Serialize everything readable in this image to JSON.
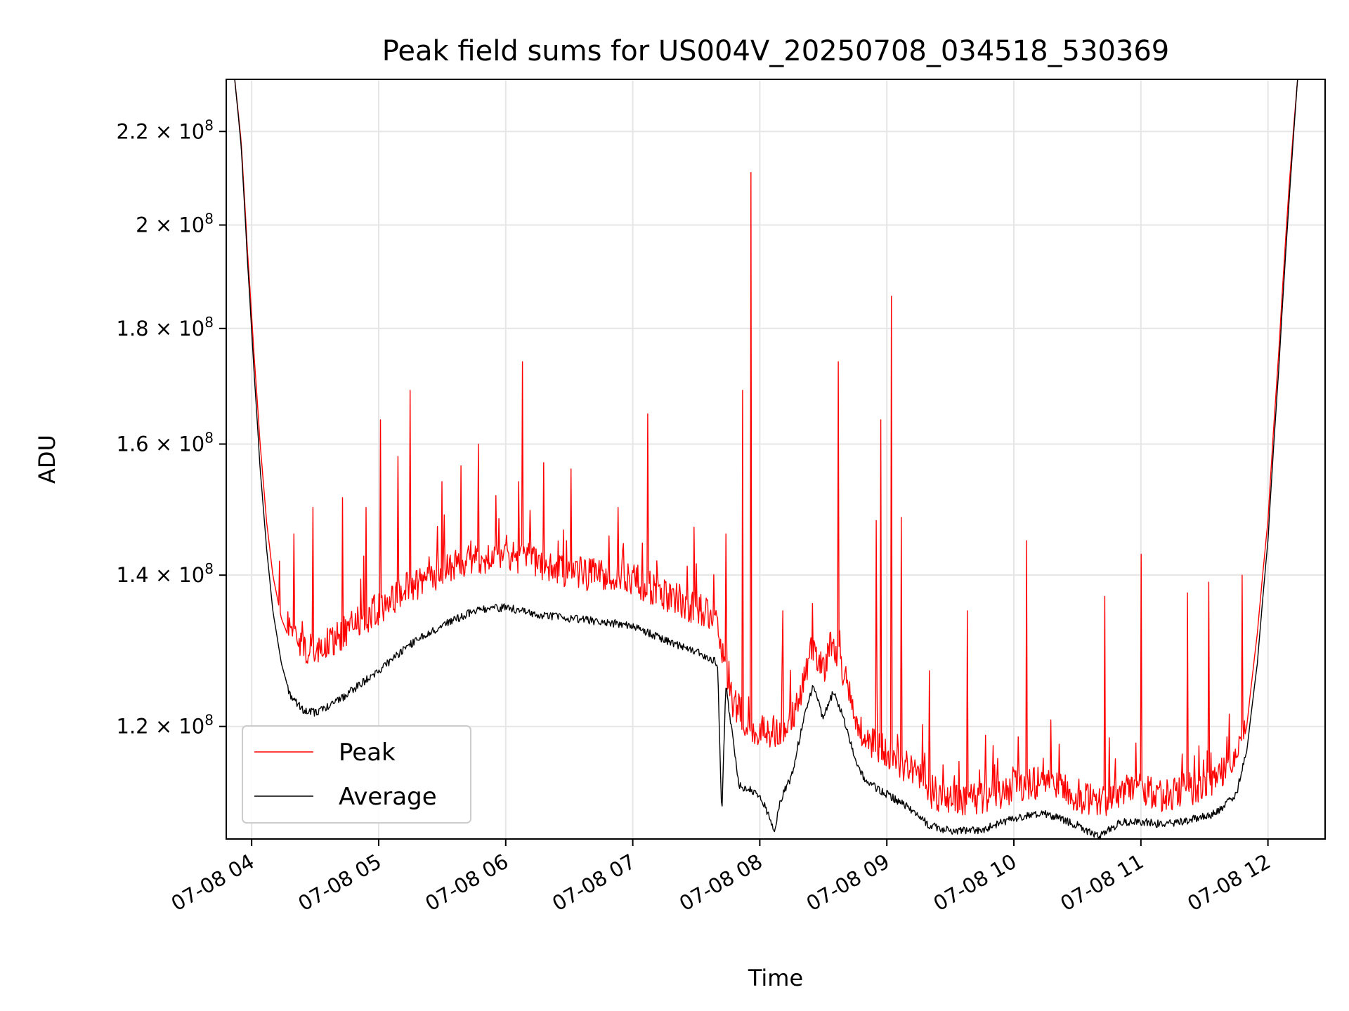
{
  "chart_data": {
    "type": "line",
    "title": "Peak field sums for US004V_20250708_034518_530369",
    "xlabel": "Time",
    "ylabel": "ADU",
    "y_scale": "log",
    "ylim": [
      107000000,
      232000000
    ],
    "xlim": [
      "2025-07-08 03:48",
      "2025-07-08 12:27"
    ],
    "x_ticks": [
      {
        "value": "2025-07-08 04:00",
        "label": "07-08 04"
      },
      {
        "value": "2025-07-08 05:00",
        "label": "07-08 05"
      },
      {
        "value": "2025-07-08 06:00",
        "label": "07-08 06"
      },
      {
        "value": "2025-07-08 07:00",
        "label": "07-08 07"
      },
      {
        "value": "2025-07-08 08:00",
        "label": "07-08 08"
      },
      {
        "value": "2025-07-08 09:00",
        "label": "07-08 09"
      },
      {
        "value": "2025-07-08 10:00",
        "label": "07-08 10"
      },
      {
        "value": "2025-07-08 11:00",
        "label": "07-08 11"
      },
      {
        "value": "2025-07-08 12:00",
        "label": "07-08 12"
      }
    ],
    "y_ticks": [
      {
        "value": 120000000,
        "mantissa": "1.2",
        "exponent": "8"
      },
      {
        "value": 140000000,
        "mantissa": "1.4",
        "exponent": "8"
      },
      {
        "value": 160000000,
        "mantissa": "1.6",
        "exponent": "8"
      },
      {
        "value": 180000000,
        "mantissa": "1.8",
        "exponent": "8"
      },
      {
        "value": 200000000,
        "mantissa": "2",
        "exponent": "8"
      },
      {
        "value": 220000000,
        "mantissa": "2.2",
        "exponent": "8"
      }
    ],
    "grid": true,
    "legend_position": "lower-left",
    "series": [
      {
        "name": "Peak",
        "color": "#ff0000",
        "points": [
          [
            "2025-07-08 03:52",
            232000000
          ],
          [
            "2025-07-08 03:55",
            218000000
          ],
          [
            "2025-07-08 03:58",
            195000000
          ],
          [
            "2025-07-08 04:01",
            176000000
          ],
          [
            "2025-07-08 04:04",
            160000000
          ],
          [
            "2025-07-08 04:07",
            148000000
          ],
          [
            "2025-07-08 04:10",
            140000000
          ],
          [
            "2025-07-08 04:14",
            134000000
          ],
          [
            "2025-07-08 04:18",
            131000000
          ],
          [
            "2025-07-08 04:24",
            128000000
          ],
          [
            "2025-07-08 04:30",
            127500000
          ],
          [
            "2025-07-08 04:40",
            129000000
          ],
          [
            "2025-07-08 04:50",
            131000000
          ],
          [
            "2025-07-08 05:00",
            133000000
          ],
          [
            "2025-07-08 05:15",
            136000000
          ],
          [
            "2025-07-08 05:30",
            138000000
          ],
          [
            "2025-07-08 05:45",
            140000000
          ],
          [
            "2025-07-08 06:00",
            140500000
          ],
          [
            "2025-07-08 06:15",
            139500000
          ],
          [
            "2025-07-08 06:30",
            138000000
          ],
          [
            "2025-07-08 06:45",
            137500000
          ],
          [
            "2025-07-08 07:00",
            137000000
          ],
          [
            "2025-07-08 07:15",
            135000000
          ],
          [
            "2025-07-08 07:30",
            133000000
          ],
          [
            "2025-07-08 07:40",
            132000000
          ],
          [
            "2025-07-08 07:45",
            122000000
          ],
          [
            "2025-07-08 07:55",
            118000000
          ],
          [
            "2025-07-08 08:05",
            117000000
          ],
          [
            "2025-07-08 08:15",
            118500000
          ],
          [
            "2025-07-08 08:20",
            123000000
          ],
          [
            "2025-07-08 08:25",
            128000000
          ],
          [
            "2025-07-08 08:30",
            125000000
          ],
          [
            "2025-07-08 08:35",
            128000000
          ],
          [
            "2025-07-08 08:40",
            124000000
          ],
          [
            "2025-07-08 08:45",
            119000000
          ],
          [
            "2025-07-08 08:50",
            116500000
          ],
          [
            "2025-07-08 09:00",
            115000000
          ],
          [
            "2025-07-08 09:10",
            113000000
          ],
          [
            "2025-07-08 09:20",
            110500000
          ],
          [
            "2025-07-08 09:30",
            109500000
          ],
          [
            "2025-07-08 09:45",
            109500000
          ],
          [
            "2025-07-08 10:00",
            111000000
          ],
          [
            "2025-07-08 10:15",
            111500000
          ],
          [
            "2025-07-08 10:30",
            110000000
          ],
          [
            "2025-07-08 10:40",
            109000000
          ],
          [
            "2025-07-08 10:50",
            110500000
          ],
          [
            "2025-07-08 11:00",
            110500000
          ],
          [
            "2025-07-08 11:10",
            110000000
          ],
          [
            "2025-07-08 11:20",
            110500000
          ],
          [
            "2025-07-08 11:35",
            111500000
          ],
          [
            "2025-07-08 11:45",
            114000000
          ],
          [
            "2025-07-08 11:50",
            120000000
          ],
          [
            "2025-07-08 11:55",
            132000000
          ],
          [
            "2025-07-08 12:00",
            148000000
          ],
          [
            "2025-07-08 12:05",
            175000000
          ],
          [
            "2025-07-08 12:10",
            208000000
          ],
          [
            "2025-07-08 12:14",
            232000000
          ]
        ],
        "spikes": [
          [
            "2025-07-08 04:13",
            142000000
          ],
          [
            "2025-07-08 04:20",
            146000000
          ],
          [
            "2025-07-08 04:29",
            150000000
          ],
          [
            "2025-07-08 04:43",
            151500000
          ],
          [
            "2025-07-08 04:54",
            150000000
          ],
          [
            "2025-07-08 05:01",
            164000000
          ],
          [
            "2025-07-08 05:09",
            158000000
          ],
          [
            "2025-07-08 05:15",
            169000000
          ],
          [
            "2025-07-08 05:30",
            154000000
          ],
          [
            "2025-07-08 05:39",
            156500000
          ],
          [
            "2025-07-08 05:47",
            160000000
          ],
          [
            "2025-07-08 06:06",
            154000000
          ],
          [
            "2025-07-08 06:08",
            174000000
          ],
          [
            "2025-07-08 06:18",
            157000000
          ],
          [
            "2025-07-08 06:31",
            156000000
          ],
          [
            "2025-07-08 06:53",
            150000000
          ],
          [
            "2025-07-08 07:07",
            165000000
          ],
          [
            "2025-07-08 07:29",
            147000000
          ],
          [
            "2025-07-08 07:44",
            146000000
          ],
          [
            "2025-07-08 07:52",
            169000000
          ],
          [
            "2025-07-08 07:56",
            211000000
          ],
          [
            "2025-07-08 08:11",
            135000000
          ],
          [
            "2025-07-08 08:25",
            136000000
          ],
          [
            "2025-07-08 08:37",
            174000000
          ],
          [
            "2025-07-08 08:55",
            148000000
          ],
          [
            "2025-07-08 08:57",
            164000000
          ],
          [
            "2025-07-08 09:02",
            186000000
          ],
          [
            "2025-07-08 09:07",
            148500000
          ],
          [
            "2025-07-08 09:20",
            127000000
          ],
          [
            "2025-07-08 09:38",
            135000000
          ],
          [
            "2025-07-08 10:06",
            145000000
          ],
          [
            "2025-07-08 10:43",
            137000000
          ],
          [
            "2025-07-08 11:00",
            143000000
          ],
          [
            "2025-07-08 11:22",
            137500000
          ],
          [
            "2025-07-08 11:32",
            139000000
          ],
          [
            "2025-07-08 11:48",
            140000000
          ]
        ]
      },
      {
        "name": "Average",
        "color": "#000000",
        "points": [
          [
            "2025-07-08 03:52",
            232000000
          ],
          [
            "2025-07-08 03:55",
            217000000
          ],
          [
            "2025-07-08 03:58",
            193000000
          ],
          [
            "2025-07-08 04:01",
            173000000
          ],
          [
            "2025-07-08 04:04",
            156000000
          ],
          [
            "2025-07-08 04:07",
            144000000
          ],
          [
            "2025-07-08 04:10",
            135000000
          ],
          [
            "2025-07-08 04:14",
            128000000
          ],
          [
            "2025-07-08 04:18",
            124000000
          ],
          [
            "2025-07-08 04:24",
            122000000
          ],
          [
            "2025-07-08 04:30",
            121700000
          ],
          [
            "2025-07-08 04:40",
            123000000
          ],
          [
            "2025-07-08 04:50",
            125000000
          ],
          [
            "2025-07-08 05:00",
            127000000
          ],
          [
            "2025-07-08 05:15",
            130500000
          ],
          [
            "2025-07-08 05:30",
            133000000
          ],
          [
            "2025-07-08 05:45",
            135000000
          ],
          [
            "2025-07-08 06:00",
            135500000
          ],
          [
            "2025-07-08 06:15",
            134500000
          ],
          [
            "2025-07-08 06:30",
            134000000
          ],
          [
            "2025-07-08 06:45",
            133500000
          ],
          [
            "2025-07-08 07:00",
            133000000
          ],
          [
            "2025-07-08 07:15",
            131000000
          ],
          [
            "2025-07-08 07:30",
            129500000
          ],
          [
            "2025-07-08 07:40",
            128000000
          ],
          [
            "2025-07-08 07:42",
            109500000
          ],
          [
            "2025-07-08 07:44",
            125000000
          ],
          [
            "2025-07-08 07:50",
            113000000
          ],
          [
            "2025-07-08 08:00",
            112000000
          ],
          [
            "2025-07-08 08:07",
            108000000
          ],
          [
            "2025-07-08 08:10",
            111500000
          ],
          [
            "2025-07-08 08:15",
            114000000
          ],
          [
            "2025-07-08 08:20",
            120000000
          ],
          [
            "2025-07-08 08:25",
            125000000
          ],
          [
            "2025-07-08 08:30",
            121000000
          ],
          [
            "2025-07-08 08:35",
            124500000
          ],
          [
            "2025-07-08 08:40",
            120500000
          ],
          [
            "2025-07-08 08:45",
            116000000
          ],
          [
            "2025-07-08 08:50",
            113500000
          ],
          [
            "2025-07-08 09:00",
            112000000
          ],
          [
            "2025-07-08 09:10",
            110500000
          ],
          [
            "2025-07-08 09:20",
            108500000
          ],
          [
            "2025-07-08 09:30",
            107900000
          ],
          [
            "2025-07-08 09:45",
            108000000
          ],
          [
            "2025-07-08 10:00",
            109300000
          ],
          [
            "2025-07-08 10:15",
            109800000
          ],
          [
            "2025-07-08 10:30",
            108500000
          ],
          [
            "2025-07-08 10:40",
            107200000
          ],
          [
            "2025-07-08 10:50",
            108800000
          ],
          [
            "2025-07-08 11:00",
            108900000
          ],
          [
            "2025-07-08 11:10",
            108600000
          ],
          [
            "2025-07-08 11:20",
            108900000
          ],
          [
            "2025-07-08 11:35",
            109800000
          ],
          [
            "2025-07-08 11:45",
            112000000
          ],
          [
            "2025-07-08 11:50",
            117000000
          ],
          [
            "2025-07-08 11:55",
            128000000
          ],
          [
            "2025-07-08 12:00",
            145000000
          ],
          [
            "2025-07-08 12:05",
            172000000
          ],
          [
            "2025-07-08 12:10",
            205000000
          ],
          [
            "2025-07-08 12:14",
            232000000
          ]
        ]
      }
    ]
  }
}
